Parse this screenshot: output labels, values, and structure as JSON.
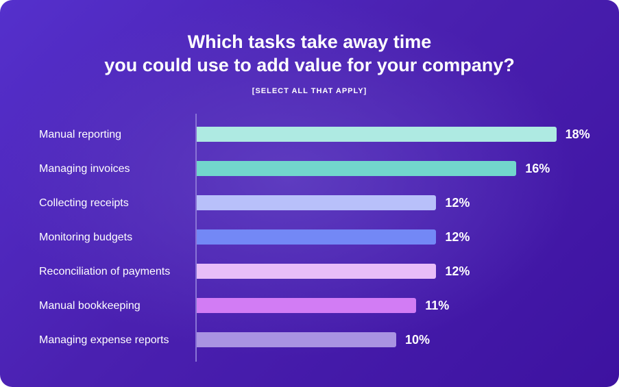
{
  "chart_data": {
    "type": "bar",
    "orientation": "horizontal",
    "title": "Which tasks take away time you could use to add value for your company?",
    "title_lines": [
      "Which tasks take away time",
      "you could use to add value for your company?"
    ],
    "subtitle": "[SELECT ALL THAT APPLY]",
    "categories": [
      "Manual reporting",
      "Managing invoices",
      "Collecting receipts",
      "Monitoring budgets",
      "Reconciliation of payments",
      "Manual bookkeeping",
      "Managing expense reports"
    ],
    "values": [
      18,
      16,
      12,
      12,
      12,
      11,
      10
    ],
    "value_labels": [
      "18%",
      "16%",
      "12%",
      "12%",
      "12%",
      "11%",
      "10%"
    ],
    "colors": [
      "#aeeae2",
      "#72d6cc",
      "#b8c0fa",
      "#7388f6",
      "#e8bdf8",
      "#d27cf4",
      "#a993e2"
    ],
    "unit": "%",
    "grid": false,
    "legend": "none"
  }
}
